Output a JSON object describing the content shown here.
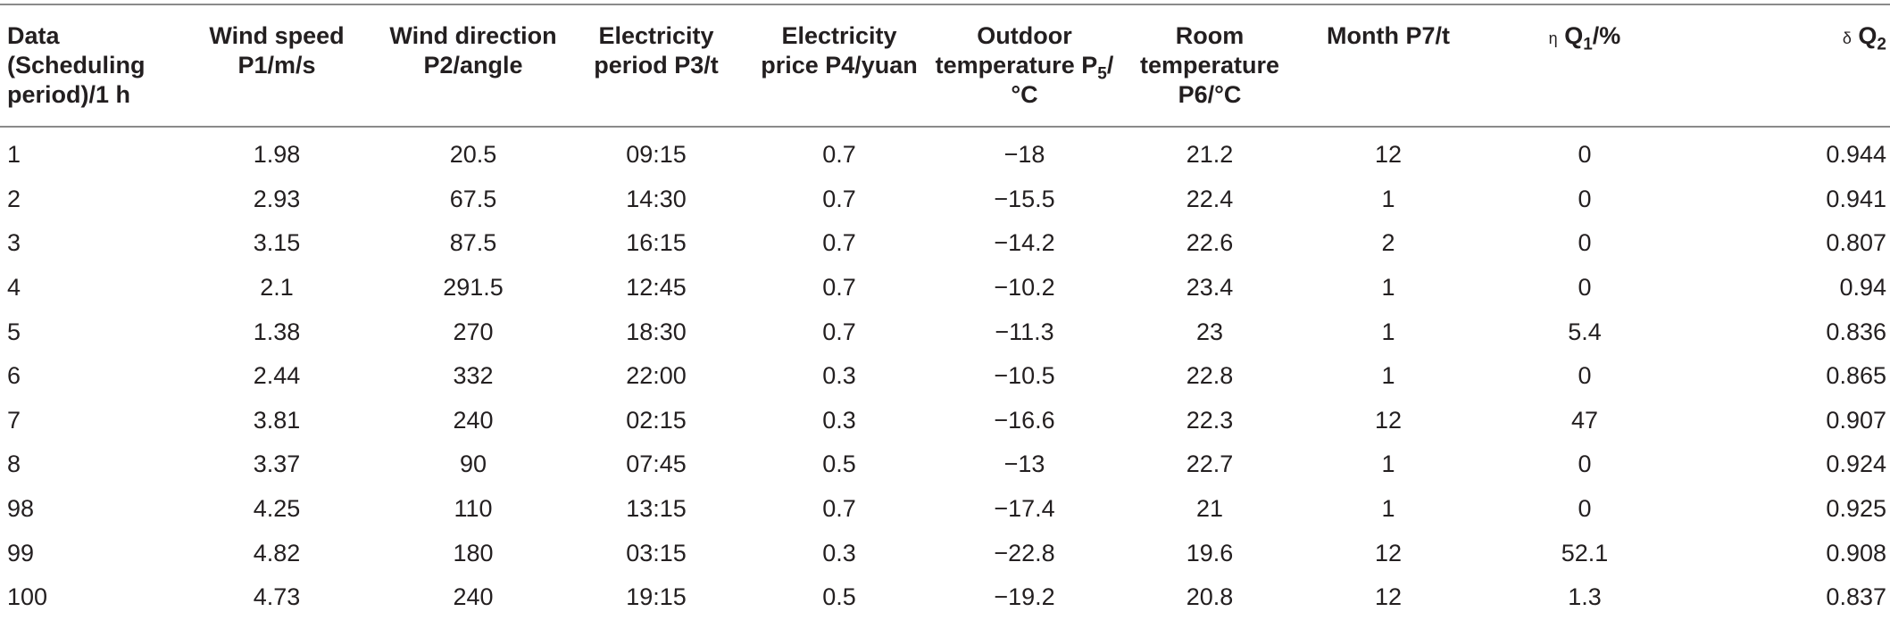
{
  "headers": {
    "h0": "Data (Scheduling period)/1 h",
    "h1": "Wind speed P1/m/s",
    "h2": "Wind direction P2/angle",
    "h3": "Electricity period P3/t",
    "h4": "Electricity price P4/yuan",
    "h5_main": "Outdoor temperature P",
    "h5_sub": "5",
    "h5_unit": "/°C",
    "h6": "Room temperature P6/°C",
    "h7": "Month P7/t",
    "h8_prefix": "η",
    "h8_main": "Q",
    "h8_sub": "1",
    "h8_unit": "/%",
    "h9_prefix": "δ",
    "h9_main": "Q",
    "h9_sub": "2"
  },
  "rows": [
    [
      "1",
      "1.98",
      "20.5",
      "09:15",
      "0.7",
      "−18",
      "21.2",
      "12",
      "0",
      "0.944"
    ],
    [
      "2",
      "2.93",
      "67.5",
      "14:30",
      "0.7",
      "−15.5",
      "22.4",
      "1",
      "0",
      "0.941"
    ],
    [
      "3",
      "3.15",
      "87.5",
      "16:15",
      "0.7",
      "−14.2",
      "22.6",
      "2",
      "0",
      "0.807"
    ],
    [
      "4",
      "2.1",
      "291.5",
      "12:45",
      "0.7",
      "−10.2",
      "23.4",
      "1",
      "0",
      "0.94"
    ],
    [
      "5",
      "1.38",
      "270",
      "18:30",
      "0.7",
      "−11.3",
      "23",
      "1",
      "5.4",
      "0.836"
    ],
    [
      "6",
      "2.44",
      "332",
      "22:00",
      "0.3",
      "−10.5",
      "22.8",
      "1",
      "0",
      "0.865"
    ],
    [
      "7",
      "3.81",
      "240",
      "02:15",
      "0.3",
      "−16.6",
      "22.3",
      "12",
      "47",
      "0.907"
    ],
    [
      "8",
      "3.37",
      "90",
      "07:45",
      "0.5",
      "−13",
      "22.7",
      "1",
      "0",
      "0.924"
    ],
    [
      "98",
      "4.25",
      "110",
      "13:15",
      "0.7",
      "−17.4",
      "21",
      "1",
      "0",
      "0.925"
    ],
    [
      "99",
      "4.82",
      "180",
      "03:15",
      "0.3",
      "−22.8",
      "19.6",
      "12",
      "52.1",
      "0.908"
    ],
    [
      "100",
      "4.73",
      "240",
      "19:15",
      "0.5",
      "−19.2",
      "20.8",
      "12",
      "1.3",
      "0.837"
    ]
  ]
}
